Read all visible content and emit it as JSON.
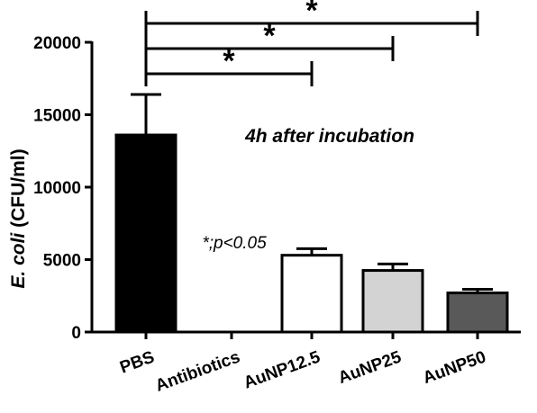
{
  "chart_data": {
    "type": "bar",
    "title": "",
    "xlabel": "",
    "ylabel_italic": "E. coli",
    "ylabel_unit": " (CFU/ml)",
    "ylim": [
      0,
      20000
    ],
    "yticks": [
      0,
      5000,
      10000,
      15000,
      20000
    ],
    "categories": [
      "PBS",
      "Antibiotics",
      "AuNP12.5",
      "AuNP25",
      "AuNP50"
    ],
    "values": [
      13600,
      0,
      5300,
      4250,
      2700
    ],
    "errors": [
      2800,
      0,
      450,
      450,
      250
    ],
    "bar_colors": [
      "#000000",
      "#ffffff",
      "#ffffff",
      "#d3d3d3",
      "#595959"
    ],
    "annotation": "4h after incubation",
    "significance_note": "*;p<0.05",
    "brackets": [
      {
        "from": "PBS",
        "to": "AuNP12.5",
        "label": "*"
      },
      {
        "from": "PBS",
        "to": "AuNP25",
        "label": "*"
      },
      {
        "from": "PBS",
        "to": "AuNP50",
        "label": "*"
      }
    ]
  }
}
